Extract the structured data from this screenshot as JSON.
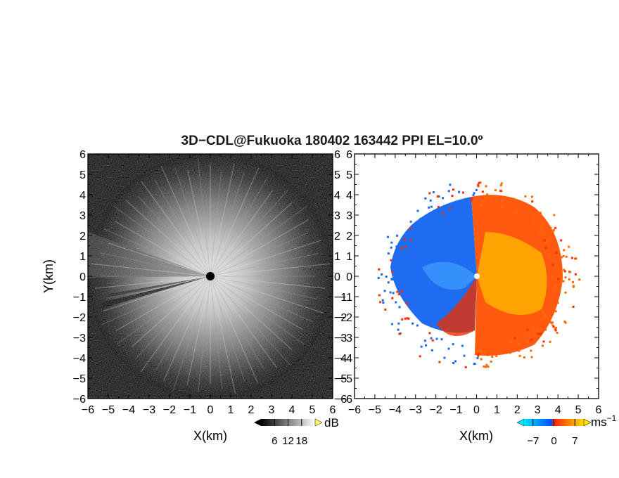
{
  "chart_data": {
    "title": "3D−CDL@Fukuoka 180402 163442 PPI EL=10.0º",
    "panels": [
      {
        "type": "heatmap",
        "quantity": "signal intensity",
        "xlabel": "X(km)",
        "ylabel": "Y(km)",
        "xlim": [
          -6,
          6
        ],
        "ylim": [
          -6,
          6
        ],
        "x_ticks": [
          "−6",
          "−5",
          "−4",
          "−3",
          "−2",
          "−1",
          "0",
          "1",
          "2",
          "3",
          "4",
          "5",
          "6"
        ],
        "y_ticks": [
          "−6",
          "−5",
          "−4",
          "−3",
          "−2",
          "−1",
          "0",
          "1",
          "2",
          "3",
          "4",
          "5",
          "6"
        ],
        "colorbar": {
          "ticks": [
            "6",
            "12",
            "18"
          ],
          "tick_values": [
            6,
            12,
            18
          ],
          "range": [
            0,
            24
          ],
          "unit": "dB",
          "colors": [
            "#000000",
            "#ffffff"
          ]
        }
      },
      {
        "type": "heatmap",
        "quantity": "Doppler velocity",
        "xlabel": "X(km)",
        "ylabel": "",
        "xlim": [
          -6,
          6
        ],
        "ylim": [
          -6,
          6
        ],
        "x_ticks": [
          "−6",
          "−5",
          "−4",
          "−3",
          "−2",
          "−1",
          "0",
          "1",
          "2",
          "3",
          "4",
          "5",
          "6"
        ],
        "y_ticks": [
          "−6",
          "−5",
          "−4",
          "−3",
          "−2",
          "−1",
          "0",
          "1",
          "2",
          "3",
          "4",
          "5",
          "6"
        ],
        "colorbar": {
          "ticks": [
            "−7",
            "0",
            "7"
          ],
          "tick_values": [
            -7,
            0,
            7
          ],
          "range": [
            -10,
            10
          ],
          "unit_base": "ms",
          "unit_exp": "−1",
          "colors": [
            "#00e5ff",
            "#0050ff",
            "#ff2000",
            "#ffe000"
          ]
        }
      }
    ]
  }
}
